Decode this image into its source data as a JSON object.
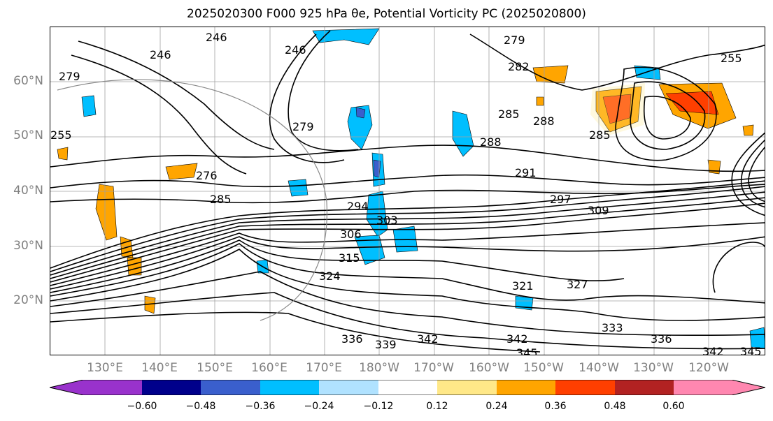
{
  "title": "2025020300 F000 925 hPa θe, Potential Vorticity PC (2025020800)",
  "latitude_labels": [
    "60°N",
    "50°N",
    "40°N",
    "30°N",
    "20°N"
  ],
  "longitude_labels": [
    "130°E",
    "140°E",
    "150°E",
    "160°E",
    "170°E",
    "180°W",
    "170°W",
    "160°W",
    "150°W",
    "140°W",
    "130°W",
    "120°W"
  ],
  "contour_labels": [
    "246",
    "246",
    "279",
    "282",
    "255",
    "279",
    "276",
    "285",
    "294",
    "297",
    "309",
    "306",
    "303",
    "315",
    "324",
    "321",
    "327",
    "333",
    "336",
    "339",
    "342",
    "345",
    "342",
    "336",
    "342",
    "345",
    "288",
    "291",
    "285",
    "288",
    "285",
    "255",
    "279",
    "246"
  ],
  "colorbar": {
    "ticks": [
      "−0.60",
      "−0.48",
      "−0.36",
      "−0.24",
      "−0.12",
      "0.12",
      "0.24",
      "0.36",
      "0.48",
      "0.60"
    ],
    "colors": [
      "#9932cc",
      "#00008b",
      "#3a5fcd",
      "#00bfff",
      "#b0e2ff",
      "#ffffff",
      "#ffe888",
      "#ffa500",
      "#ff3f00",
      "#b22222",
      "#ff87b0"
    ]
  },
  "colors": {
    "contour": "#000000",
    "grid": "#a0a0a0",
    "axis_text": "#808080",
    "pv_negative": "#00bfff",
    "pv_positive": "#ff8c00"
  }
}
